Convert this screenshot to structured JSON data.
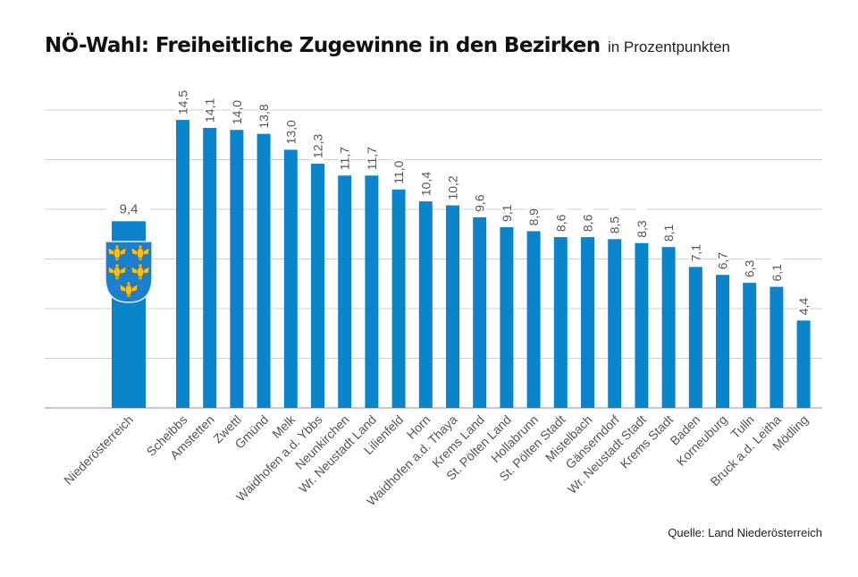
{
  "chart_data": {
    "type": "bar",
    "title": "NÖ-Wahl: Freiheitliche Zugewinne in den Bezirken",
    "subtitle": "in Prozentpunkten",
    "xlabel": "",
    "ylabel": "",
    "ylim": [
      0,
      15
    ],
    "gridlines": [
      0,
      2.5,
      5,
      7.5,
      10,
      12.5,
      15
    ],
    "grid": true,
    "bar_color": "#0a85cc",
    "total": {
      "category": "Niederösterreich",
      "value": 9.4,
      "label": "9,4",
      "emblem": "lower-austria-coat-of-arms-icon"
    },
    "categories": [
      "Scheibbs",
      "Amstetten",
      "Zwettl",
      "Gmünd",
      "Melk",
      "Waidhofen a.d. Ybbs",
      "Neunkirchen",
      "Wr. Neustadt Land",
      "Lilienfeld",
      "Horn",
      "Waidhofen a.d. Thaya",
      "Krems Land",
      "St. Pölten Land",
      "Hollabrunn",
      "St. Pölten Stadt",
      "Mistelbach",
      "Gänserndorf",
      "Wr. Neustadt Stadt",
      "Krems Stadt",
      "Baden",
      "Korneuburg",
      "Tulln",
      "Bruck a.d. Leitha",
      "Mödling"
    ],
    "values": [
      14.5,
      14.1,
      14.0,
      13.8,
      13.0,
      12.3,
      11.7,
      11.7,
      11.0,
      10.4,
      10.2,
      9.6,
      9.1,
      8.9,
      8.6,
      8.6,
      8.5,
      8.3,
      8.1,
      7.1,
      6.7,
      6.3,
      6.1,
      4.4
    ],
    "value_labels": [
      "14,5",
      "14,1",
      "14,0",
      "13,8",
      "13,0",
      "12,3",
      "11,7",
      "11,7",
      "11,0",
      "10,4",
      "10,2",
      "9,6",
      "9,1",
      "8,9",
      "8,6",
      "8,6",
      "8,5",
      "8,3",
      "8,1",
      "7,1",
      "6,7",
      "6,3",
      "6,1",
      "4,4"
    ]
  },
  "source": "Quelle: Land Niederösterreich"
}
